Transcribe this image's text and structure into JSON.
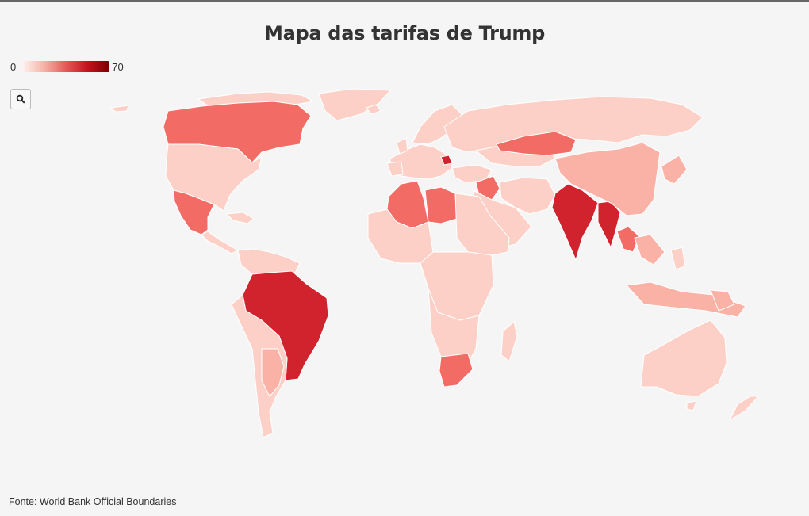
{
  "title": "Mapa das tarifas de Trump",
  "legend": {
    "min": "0",
    "max": "70"
  },
  "zoom_button": {
    "icon": "search-icon"
  },
  "map": {
    "colors": {
      "background": "#f5f5f5",
      "very_light": "#fdd0c7",
      "light": "#f9b2a5",
      "medium": "#f26c65",
      "dark": "#d0232d",
      "darkest": "#b51e26"
    },
    "countries": [
      {
        "name": "Canada",
        "tier": "medium"
      },
      {
        "name": "Greenland",
        "tier": "very_light"
      },
      {
        "name": "United States",
        "tier": "very_light"
      },
      {
        "name": "Mexico",
        "tier": "medium"
      },
      {
        "name": "Brazil",
        "tier": "dark"
      },
      {
        "name": "India",
        "tier": "dark"
      },
      {
        "name": "Myanmar",
        "tier": "dark"
      },
      {
        "name": "Thailand",
        "tier": "medium"
      },
      {
        "name": "China",
        "tier": "light"
      },
      {
        "name": "Mongolia",
        "tier": "medium"
      },
      {
        "name": "Algeria",
        "tier": "medium"
      },
      {
        "name": "Libya",
        "tier": "medium"
      },
      {
        "name": "Iraq",
        "tier": "medium"
      },
      {
        "name": "South Africa",
        "tier": "medium"
      },
      {
        "name": "Russia",
        "tier": "very_light"
      },
      {
        "name": "Australia",
        "tier": "very_light"
      }
    ]
  },
  "source": {
    "label": "Fonte:",
    "link_text": "World Bank Official Boundaries"
  }
}
